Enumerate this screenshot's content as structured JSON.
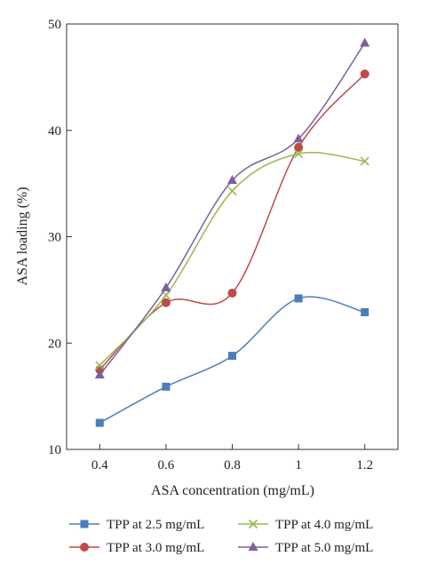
{
  "chart_data": {
    "type": "line",
    "title": "",
    "xlabel": "ASA concentration (mg/mL)",
    "ylabel": "ASA loading (%)",
    "x": [
      0.4,
      0.6,
      0.8,
      1.0,
      1.2
    ],
    "x_tick_labels": [
      "0.4",
      "0.6",
      "0.8",
      "1",
      "1.2"
    ],
    "y_ticks": [
      10,
      20,
      30,
      40,
      50
    ],
    "y_tick_labels": [
      "10",
      "20",
      "30",
      "40",
      "50"
    ],
    "xlim": [
      0.3,
      1.3
    ],
    "ylim": [
      10,
      50
    ],
    "grid": false,
    "legend_position": "bottom",
    "series": [
      {
        "name": "TPP at 2.5 mg/mL",
        "color": "#4a7ebb",
        "marker": "square",
        "values": [
          12.5,
          15.9,
          18.8,
          24.2,
          22.9
        ]
      },
      {
        "name": "TPP at 3.0 mg/mL",
        "color": "#be4b48",
        "marker": "circle",
        "values": [
          17.5,
          23.8,
          24.7,
          38.4,
          45.3
        ]
      },
      {
        "name": "TPP at 4.0 mg/mL",
        "color": "#98b954",
        "marker": "x",
        "values": [
          17.9,
          24.5,
          34.3,
          37.8,
          37.1
        ]
      },
      {
        "name": "TPP at 5.0 mg/mL",
        "color": "#7d60a0",
        "marker": "triangle",
        "values": [
          17.0,
          25.2,
          35.3,
          39.2,
          48.2
        ]
      }
    ]
  }
}
